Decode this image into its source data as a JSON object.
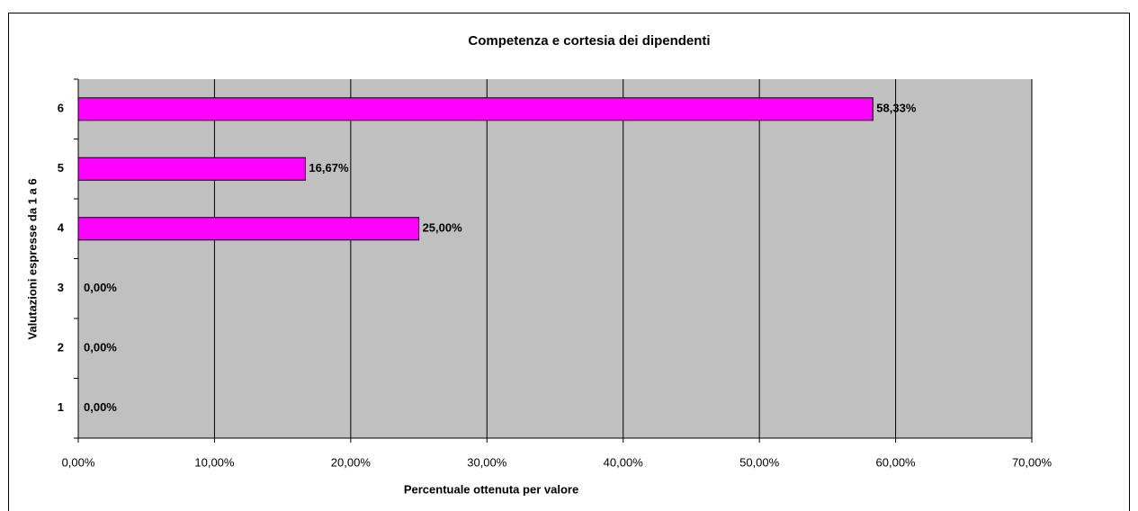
{
  "chart_data": {
    "type": "barh",
    "title": "Competenza e cortesia dei dipendenti",
    "x_label": "Percentuale ottenuta per valore",
    "y_label": "Valutazioni espresse da 1 a 6",
    "categories": [
      "1",
      "2",
      "3",
      "4",
      "5",
      "6"
    ],
    "values": [
      0,
      0,
      0,
      25,
      16.67,
      58.33
    ],
    "value_labels": [
      "0,00%",
      "0,00%",
      "0,00%",
      "25,00%",
      "16,67%",
      "58,33%"
    ],
    "color": "#ff00ff",
    "xlim": [
      0,
      70
    ],
    "xticks": [
      {
        "value": 0,
        "label": "0,00%"
      },
      {
        "value": 10,
        "label": "10,00%"
      },
      {
        "value": 20,
        "label": "20,00%"
      },
      {
        "value": 30,
        "label": "30,00%"
      },
      {
        "value": 40,
        "label": "40,00%"
      },
      {
        "value": 50,
        "label": "50,00%"
      },
      {
        "value": 60,
        "label": "60,00%"
      },
      {
        "value": 70,
        "label": "70,00%"
      }
    ],
    "grid": true
  }
}
